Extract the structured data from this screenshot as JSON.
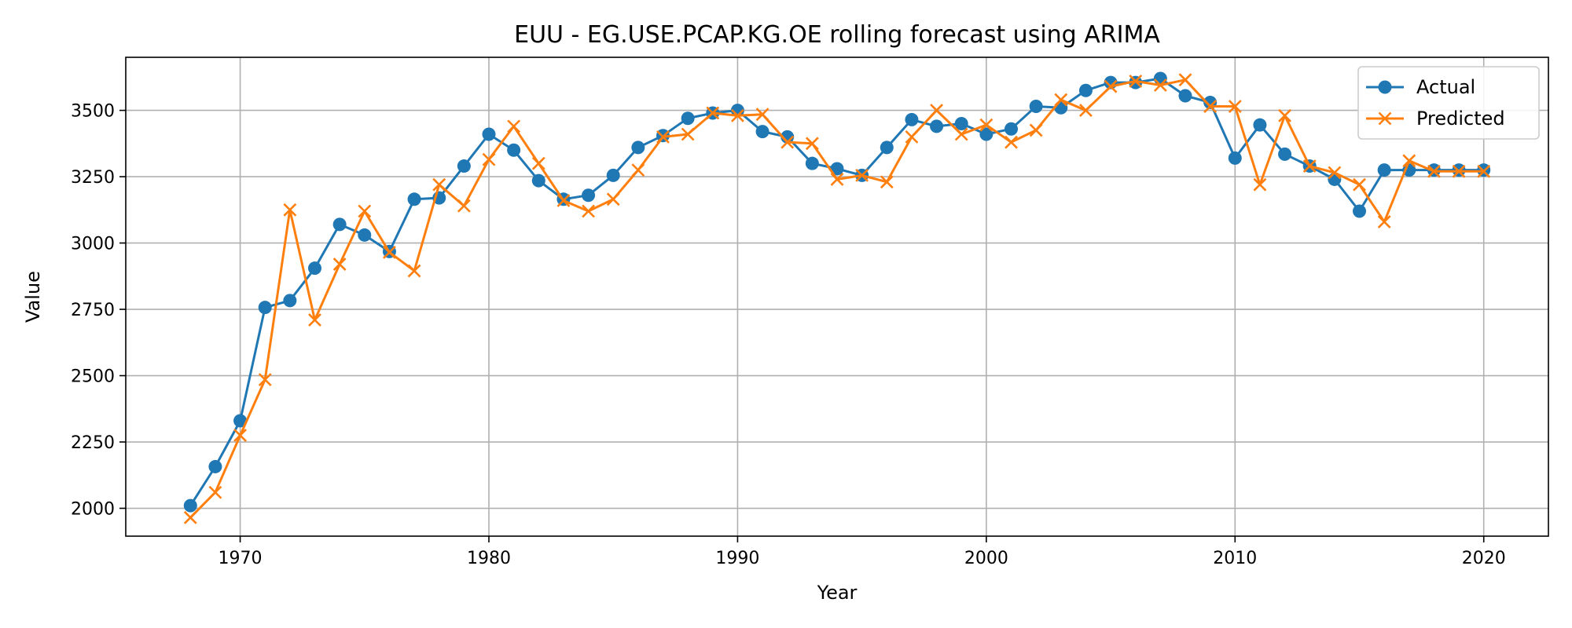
{
  "chart_data": {
    "type": "line",
    "title": "EUU - EG.USE.PCAP.KG.OE rolling forecast using ARIMA",
    "xlabel": "Year",
    "ylabel": "Value",
    "xlim": [
      1965.4,
      2022.6
    ],
    "ylim": [
      1895,
      3700
    ],
    "x_ticks": [
      1970,
      1980,
      1990,
      2000,
      2010,
      2020
    ],
    "y_ticks": [
      2000,
      2250,
      2500,
      2750,
      3000,
      3250,
      3500
    ],
    "grid": true,
    "legend_position": "top-right",
    "x": [
      1968,
      1969,
      1970,
      1971,
      1972,
      1973,
      1974,
      1975,
      1976,
      1977,
      1978,
      1979,
      1980,
      1981,
      1982,
      1983,
      1984,
      1985,
      1986,
      1987,
      1988,
      1989,
      1990,
      1991,
      1992,
      1993,
      1994,
      1995,
      1996,
      1997,
      1998,
      1999,
      2000,
      2001,
      2002,
      2003,
      2004,
      2005,
      2006,
      2007,
      2008,
      2009,
      2010,
      2011,
      2012,
      2013,
      2014,
      2015,
      2016,
      2017,
      2018,
      2019,
      2020
    ],
    "series": [
      {
        "name": "Actual",
        "color": "#1f77b4",
        "marker": "circle",
        "values": [
          2010,
          2157,
          2330,
          2757,
          2783,
          2905,
          3070,
          3030,
          2968,
          3165,
          3170,
          3290,
          3410,
          3350,
          3235,
          3165,
          3180,
          3255,
          3360,
          3405,
          3470,
          3490,
          3500,
          3420,
          3400,
          3300,
          3280,
          3255,
          3360,
          3465,
          3440,
          3450,
          3410,
          3430,
          3515,
          3510,
          3575,
          3605,
          3605,
          3620,
          3555,
          3530,
          3320,
          3445,
          3335,
          3290,
          3240,
          3120,
          3275,
          3275,
          3275,
          3275,
          3275
        ]
      },
      {
        "name": "Predicted",
        "color": "#ff7f0e",
        "marker": "x",
        "values": [
          1965,
          2060,
          2275,
          2485,
          3125,
          2710,
          2920,
          3120,
          2965,
          2895,
          3220,
          3140,
          3315,
          3440,
          3300,
          3160,
          3120,
          3165,
          3275,
          3400,
          3410,
          3490,
          3480,
          3485,
          3380,
          3375,
          3240,
          3255,
          3230,
          3400,
          3500,
          3410,
          3445,
          3380,
          3425,
          3540,
          3500,
          3590,
          3610,
          3595,
          3615,
          3515,
          3515,
          3220,
          3480,
          3290,
          3265,
          3220,
          3080,
          3310,
          3270,
          3270,
          3270
        ]
      }
    ]
  }
}
